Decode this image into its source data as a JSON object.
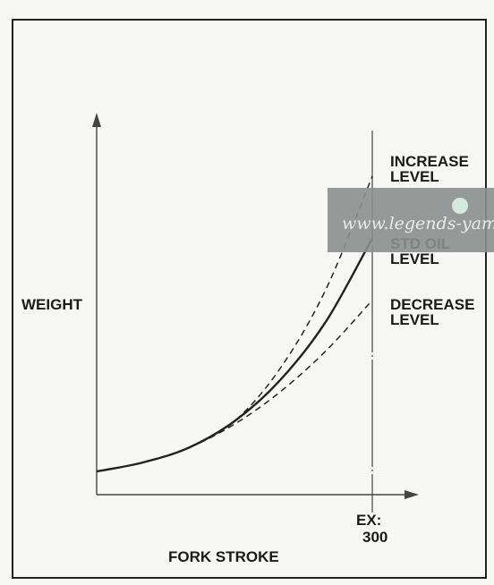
{
  "chart_data": {
    "type": "line",
    "title": "",
    "xlabel": "FORK STROKE",
    "ylabel": "WEIGHT",
    "x_marker_label": "EX:",
    "x_marker_value": "300",
    "xlim": [
      0,
      350
    ],
    "ylim": [
      0,
      1
    ],
    "grid": false,
    "x": [
      0,
      50,
      100,
      150,
      200,
      250,
      300
    ],
    "series": [
      {
        "name": "INCREASE\nLEVEL",
        "style": "dashed",
        "values": [
          0.0,
          0.03,
          0.08,
          0.17,
          0.35,
          0.62,
          1.0
        ]
      },
      {
        "name": "STD OIL\nLEVEL",
        "style": "solid",
        "values": [
          0.0,
          0.03,
          0.08,
          0.17,
          0.31,
          0.51,
          0.79
        ]
      },
      {
        "name": "DECREASE\nLEVEL",
        "style": "dashed",
        "values": [
          0.0,
          0.03,
          0.08,
          0.16,
          0.27,
          0.41,
          0.58
        ]
      }
    ]
  },
  "watermark": {
    "text": "www.legends-yamaha",
    "color": "#8a8f8f"
  }
}
